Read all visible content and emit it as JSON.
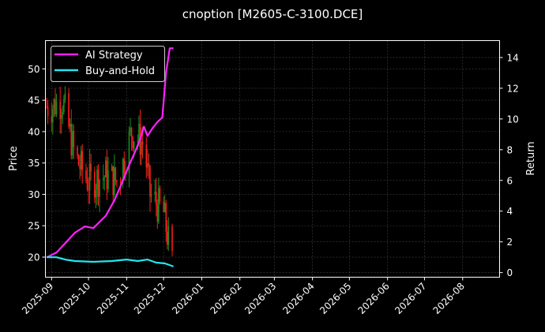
{
  "title": "cnoption [M2605-C-3100.DCE]",
  "legend": {
    "items": [
      {
        "label": "AI Strategy",
        "color": "#ff22ff"
      },
      {
        "label": "Buy-and-Hold",
        "color": "#22e6f0"
      }
    ]
  },
  "axes": {
    "left_label": "Price",
    "right_label": "Return",
    "left_ticks": [
      "20",
      "25",
      "30",
      "35",
      "40",
      "45",
      "50"
    ],
    "right_ticks": [
      "0",
      "2",
      "4",
      "6",
      "8",
      "10",
      "12",
      "14"
    ],
    "x_ticks": [
      "2025-09",
      "2025-10",
      "2025-11",
      "2025-12",
      "2026-01",
      "2026-02",
      "2026-03",
      "2026-04",
      "2026-05",
      "2026-06",
      "2026-07",
      "2026-08"
    ]
  },
  "colors": {
    "background": "#000000",
    "up_candle": "#1f8a1f",
    "down_candle": "#ff1a1a",
    "grid": "#555555"
  },
  "chart_data": {
    "type": "line",
    "title": "cnoption [M2605-C-3100.DCE]",
    "xlabel": "",
    "ylabel": "Price",
    "y2label": "Return",
    "ylim": [
      16.8,
      54.5
    ],
    "y2lim": [
      -0.3,
      15.1
    ],
    "x_range": [
      "2025-08-27",
      "2026-08-31"
    ],
    "grid": true,
    "legend_position": "upper left",
    "price_candles_summary": {
      "description": "Daily OHLC candlesticks (green up, red down), 2025-08-28 to ~2025-12-08",
      "approx_close_path": [
        {
          "date": "2025-09-01",
          "price": 44
        },
        {
          "date": "2025-09-10",
          "price": 45
        },
        {
          "date": "2025-09-20",
          "price": 36
        },
        {
          "date": "2025-10-01",
          "price": 32
        },
        {
          "date": "2025-10-15",
          "price": 33
        },
        {
          "date": "2025-10-25",
          "price": 32
        },
        {
          "date": "2025-11-05",
          "price": 40
        },
        {
          "date": "2025-11-15",
          "price": 38
        },
        {
          "date": "2025-11-20",
          "price": 30
        },
        {
          "date": "2025-12-01",
          "price": 27
        },
        {
          "date": "2025-12-08",
          "price": 19
        }
      ],
      "price_high": 51,
      "price_low": 18.5
    },
    "series": [
      {
        "name": "AI Strategy",
        "axis": "right",
        "x": [
          "2025-08-28",
          "2025-09-05",
          "2025-09-12",
          "2025-09-20",
          "2025-09-28",
          "2025-10-05",
          "2025-10-15",
          "2025-10-22",
          "2025-10-28",
          "2025-11-03",
          "2025-11-08",
          "2025-11-12",
          "2025-11-15",
          "2025-11-18",
          "2025-11-22",
          "2025-11-26",
          "2025-11-30",
          "2025-12-03",
          "2025-12-06",
          "2025-12-09"
        ],
        "values": [
          1.0,
          1.3,
          1.9,
          2.6,
          3.0,
          2.9,
          3.7,
          4.7,
          5.8,
          7.0,
          7.9,
          8.7,
          9.5,
          8.9,
          9.4,
          9.8,
          10.1,
          13.0,
          14.6,
          14.6
        ]
      },
      {
        "name": "Buy-and-Hold",
        "axis": "right",
        "x": [
          "2025-08-28",
          "2025-09-05",
          "2025-09-12",
          "2025-09-20",
          "2025-10-05",
          "2025-10-20",
          "2025-11-01",
          "2025-11-10",
          "2025-11-18",
          "2025-11-25",
          "2025-12-02",
          "2025-12-09"
        ],
        "values": [
          1.0,
          1.0,
          0.85,
          0.75,
          0.7,
          0.75,
          0.85,
          0.75,
          0.85,
          0.65,
          0.6,
          0.4
        ]
      }
    ]
  }
}
